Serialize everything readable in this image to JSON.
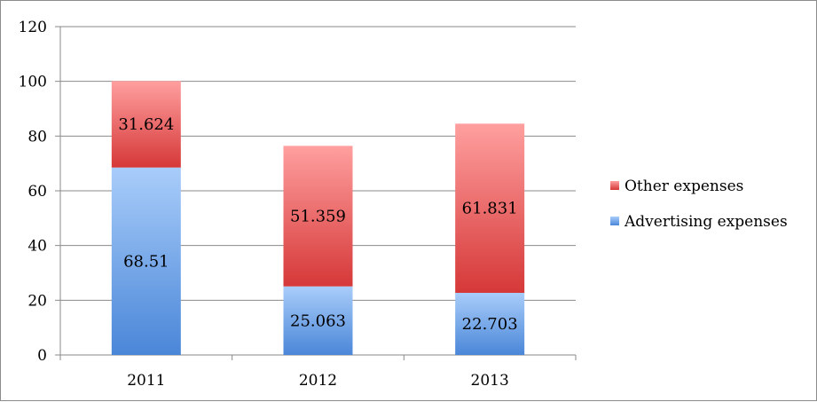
{
  "chart_data": {
    "type": "bar",
    "stacked": true,
    "categories": [
      "2011",
      "2012",
      "2013"
    ],
    "series": [
      {
        "name": "Advertising expenses",
        "values": [
          68.51,
          25.063,
          22.703
        ],
        "labels": [
          "68.51",
          "25.063",
          "22.703"
        ],
        "color": "#5b9bd5",
        "gradient": [
          "#a9cdfa",
          "#4a86d8"
        ]
      },
      {
        "name": "Other expenses",
        "values": [
          31.624,
          51.359,
          61.831
        ],
        "labels": [
          "31.624",
          "51.359",
          "61.831"
        ],
        "color": "#e04b4b",
        "gradient": [
          "#ff9f9f",
          "#d63838"
        ]
      }
    ],
    "yticks": [
      "0",
      "20",
      "40",
      "60",
      "80",
      "100",
      "120"
    ],
    "ylim": [
      0,
      120
    ],
    "ytick_step": 20,
    "title": "",
    "xlabel": "",
    "ylabel": "",
    "grid": true,
    "legend_position": "right",
    "legend_order": [
      "Other expenses",
      "Advertising expenses"
    ]
  }
}
